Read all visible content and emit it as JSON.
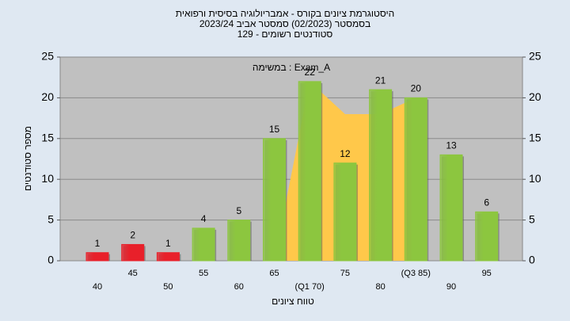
{
  "chart_data": {
    "type": "bar",
    "title": "היסטוגרמת ציונים בקורס - אמבריולוגיה בסיסית ורפואית",
    "subtitle": "בסמסטר  (02/2023)  סמסטר אביב 2023/24",
    "subtitle2": "סטודנטים רשומים - 129",
    "annotation": "במשימה : Exam_A",
    "ylabel": "מספר סטודנטים",
    "xlabel": "טווח ציונים",
    "categories": [
      "40",
      "45",
      "50",
      "55",
      "60",
      "65",
      "(Q1 70)",
      "75",
      "80",
      "(Q3 85)",
      "90",
      "95"
    ],
    "values": [
      1,
      2,
      1,
      4,
      5,
      15,
      22,
      12,
      21,
      20,
      13,
      6
    ],
    "colors": [
      "#e8202a",
      "#e8202a",
      "#e8202a",
      "#8cc63f",
      "#8cc63f",
      "#8cc63f",
      "#8cc63f",
      "#8cc63f",
      "#8cc63f",
      "#8cc63f",
      "#8cc63f",
      "#8cc63f"
    ],
    "area": {
      "color": "#ffc84a",
      "values": [
        null,
        null,
        null,
        null,
        null,
        0,
        22,
        18,
        18,
        20,
        null,
        null
      ]
    },
    "ylim": [
      0,
      25
    ],
    "yticks": [
      0,
      5,
      10,
      15,
      20,
      25
    ],
    "y2lim": [
      0,
      25
    ],
    "y2ticks": [
      0,
      5,
      10,
      15,
      20,
      25
    ],
    "grid": true
  }
}
